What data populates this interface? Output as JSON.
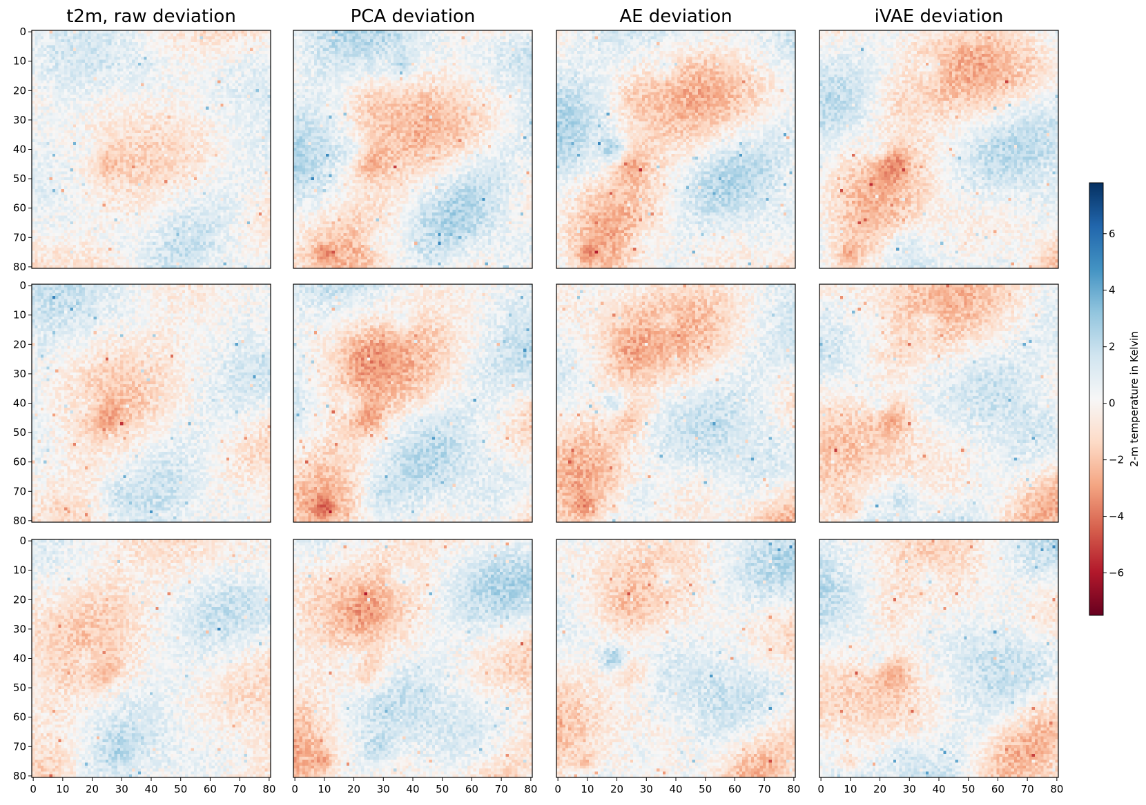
{
  "chart_data": {
    "type": "heatmap",
    "grid_rows": 3,
    "grid_cols": 4,
    "column_titles": [
      "t2m, raw deviation",
      "PCA deviation",
      "AE deviation",
      "iVAE deviation"
    ],
    "x_ticks": [
      "0",
      "10",
      "20",
      "30",
      "40",
      "50",
      "60",
      "70",
      "80"
    ],
    "y_ticks": [
      "0",
      "10",
      "20",
      "30",
      "40",
      "50",
      "60",
      "70",
      "80"
    ],
    "xlim": [
      0,
      81
    ],
    "ylim": [
      81,
      0
    ],
    "image_size": 81,
    "colormap": "RdBu",
    "colorbar": {
      "label": "2-m temperature in Kelvin",
      "range": [
        -7.5,
        7.8
      ],
      "ticks": [
        "6",
        "4",
        "2",
        "0",
        "−2",
        "−4",
        "−6"
      ],
      "tick_values": [
        6,
        4,
        2,
        0,
        -2,
        -4,
        -6
      ],
      "placement": "right"
    },
    "colors": {
      "cmap": [
        "#67001f",
        "#b2182b",
        "#d6604d",
        "#f4a582",
        "#fddbc7",
        "#f7f7f7",
        "#d1e5f0",
        "#92c5de",
        "#4393c3",
        "#2166ac",
        "#053061"
      ]
    }
  }
}
